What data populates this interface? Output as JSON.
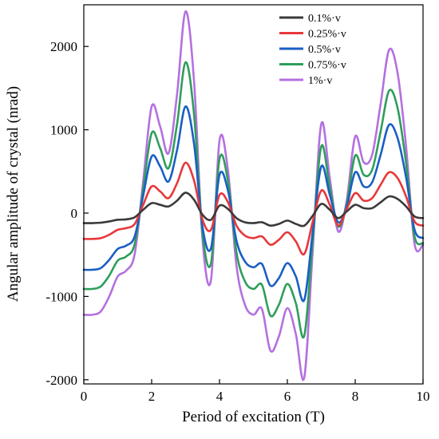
{
  "chart_data": {
    "type": "line",
    "title": "",
    "xlabel": "Period of excitation (T)",
    "ylabel": "Angular amplitude of  crystal (nrad)",
    "xlim": [
      0,
      10
    ],
    "ylim": [
      -2050,
      2500
    ],
    "xticks": [
      "0",
      "2",
      "4",
      "6",
      "8",
      "10"
    ],
    "yticks": [
      "-2000",
      "-1000",
      "0",
      "1000",
      "2000"
    ],
    "grid": false,
    "legend_position": "top-right",
    "x": [
      0,
      0.25,
      0.5,
      0.75,
      1.0,
      1.25,
      1.5,
      1.75,
      2.0,
      2.25,
      2.5,
      2.75,
      3.0,
      3.25,
      3.5,
      3.75,
      4.0,
      4.25,
      4.5,
      4.75,
      5.0,
      5.25,
      5.5,
      5.75,
      6.0,
      6.25,
      6.5,
      6.75,
      7.0,
      7.25,
      7.5,
      7.75,
      8.0,
      8.25,
      8.5,
      8.75,
      9.0,
      9.25,
      9.5,
      9.75,
      10.0
    ],
    "series": [
      {
        "name": "0.1%·v",
        "color": "#3a3a3a",
        "values": [
          -120,
          -120,
          -115,
          -100,
          -80,
          -75,
          -50,
          40,
          120,
          100,
          80,
          150,
          245,
          160,
          -20,
          -80,
          90,
          50,
          -60,
          -110,
          -120,
          -110,
          -150,
          -130,
          -90,
          -130,
          -150,
          -30,
          110,
          40,
          -60,
          20,
          100,
          60,
          60,
          130,
          200,
          170,
          80,
          -40,
          -60
        ]
      },
      {
        "name": "0.25%·v",
        "color": "#e8383a",
        "values": [
          -310,
          -310,
          -300,
          -260,
          -200,
          -180,
          -130,
          100,
          320,
          260,
          180,
          360,
          605,
          390,
          -80,
          -200,
          220,
          130,
          -150,
          -270,
          -300,
          -280,
          -380,
          -320,
          -230,
          -340,
          -490,
          -100,
          270,
          100,
          -150,
          50,
          240,
          150,
          180,
          340,
          490,
          420,
          200,
          -100,
          -150
        ]
      },
      {
        "name": "0.5%·v",
        "color": "#1a5fc4",
        "values": [
          -680,
          -680,
          -660,
          -560,
          -430,
          -390,
          -280,
          210,
          680,
          560,
          380,
          760,
          1280,
          830,
          -170,
          -420,
          460,
          270,
          -330,
          -580,
          -650,
          -610,
          -870,
          -780,
          -600,
          -760,
          -1040,
          -220,
          560,
          220,
          -110,
          80,
          490,
          320,
          370,
          700,
          1060,
          900,
          430,
          -200,
          -300
        ]
      },
      {
        "name": "0.75%·v",
        "color": "#2e9e5b",
        "values": [
          -910,
          -910,
          -880,
          -750,
          -570,
          -520,
          -370,
          290,
          960,
          780,
          540,
          1070,
          1810,
          1180,
          -240,
          -600,
          650,
          380,
          -470,
          -820,
          -910,
          -860,
          -1230,
          -1100,
          -850,
          -1080,
          -1470,
          -320,
          800,
          310,
          -160,
          110,
          690,
          460,
          520,
          980,
          1470,
          1260,
          600,
          -280,
          -360
        ]
      },
      {
        "name": "1%·v",
        "color": "#b470e0",
        "values": [
          -1220,
          -1220,
          -1180,
          -1000,
          -760,
          -690,
          -490,
          380,
          1280,
          1040,
          720,
          1430,
          2420,
          1580,
          -320,
          -800,
          870,
          510,
          -630,
          -1100,
          -1220,
          -1150,
          -1650,
          -1480,
          -1140,
          -1450,
          -1970,
          -430,
          1070,
          420,
          -220,
          150,
          920,
          610,
          700,
          1310,
          1960,
          1680,
          800,
          -370,
          -380
        ]
      }
    ]
  }
}
